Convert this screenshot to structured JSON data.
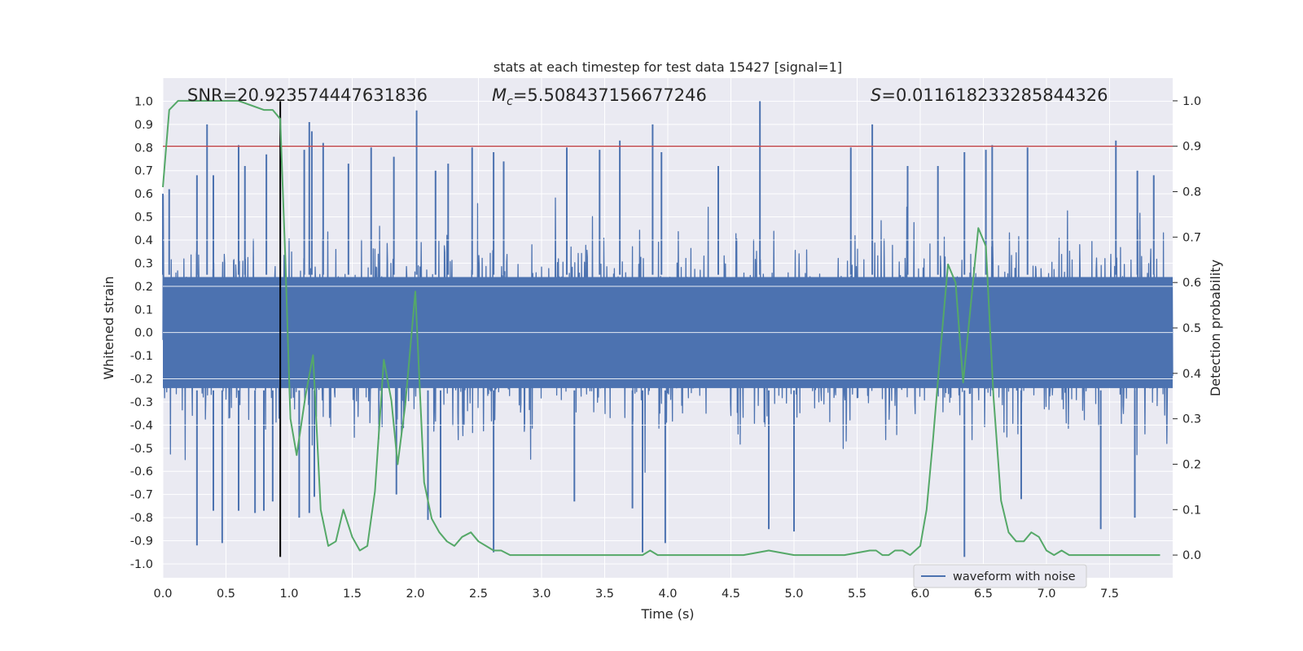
{
  "chart_data": {
    "type": "line",
    "title": "stats at each timestep for test data 15427 [signal=1]",
    "xlabel": "Time (s)",
    "ylabel_left": "Whitened strain",
    "ylabel_right": "Detection probability",
    "xlim": [
      0,
      8
    ],
    "ylim_left": [
      -1.06,
      1.1
    ],
    "ylim_right": [
      -0.05,
      1.05
    ],
    "x_ticks": [
      "0.0",
      "0.5",
      "1.0",
      "1.5",
      "2.0",
      "2.5",
      "3.0",
      "3.5",
      "4.0",
      "4.5",
      "5.0",
      "5.5",
      "6.0",
      "6.5",
      "7.0",
      "7.5"
    ],
    "y_ticks_left": [
      "1.0",
      "0.9",
      "0.8",
      "0.7",
      "0.6",
      "0.5",
      "0.4",
      "0.3",
      "0.2",
      "0.1",
      "0.0",
      "-0.1",
      "-0.2",
      "-0.3",
      "-0.4",
      "-0.5",
      "-0.6",
      "-0.7",
      "-0.8",
      "-0.9",
      "-1.0"
    ],
    "y_ticks_right": [
      "1.0",
      "0.9",
      "0.8",
      "0.7",
      "0.6",
      "0.5",
      "0.4",
      "0.3",
      "0.2",
      "0.1",
      "0.0"
    ],
    "grid": true,
    "annotations": {
      "snr": "SNR=20.923574447631836",
      "mc_symbol": "M",
      "mc_sub": "c",
      "mc_value": "=5.508437156677246",
      "s_symbol": "S",
      "s_value": "=0.011618233285844326"
    },
    "threshold": {
      "value_right_axis": 0.9,
      "color": "#c44e52"
    },
    "vertical_marker": {
      "x": 0.93,
      "y_range": [
        -0.97,
        1.0
      ],
      "color": "#000000"
    },
    "legend": {
      "label": "waveform with noise",
      "position": "lower-right"
    },
    "series": [
      {
        "name": "waveform with noise",
        "axis": "left",
        "color": "#4c72b0",
        "description": "noise-dominated whitened strain, roughly 2048 samples per second",
        "spikes_high": [
          [
            0.0,
            0.6
          ],
          [
            0.05,
            0.62
          ],
          [
            0.27,
            0.68
          ],
          [
            0.35,
            0.9
          ],
          [
            0.4,
            0.68
          ],
          [
            0.6,
            0.81
          ],
          [
            0.65,
            0.72
          ],
          [
            0.82,
            0.77
          ],
          [
            1.12,
            0.79
          ],
          [
            1.16,
            0.91
          ],
          [
            1.18,
            0.87
          ],
          [
            1.27,
            0.82
          ],
          [
            1.47,
            0.73
          ],
          [
            1.65,
            0.8
          ],
          [
            1.83,
            0.76
          ],
          [
            2.01,
            0.96
          ],
          [
            2.16,
            0.7
          ],
          [
            2.26,
            0.73
          ],
          [
            2.45,
            0.8
          ],
          [
            2.62,
            0.78
          ],
          [
            2.7,
            0.74
          ],
          [
            3.2,
            0.8
          ],
          [
            3.46,
            0.79
          ],
          [
            3.62,
            0.83
          ],
          [
            3.88,
            0.9
          ],
          [
            3.95,
            0.78
          ],
          [
            4.4,
            0.72
          ],
          [
            4.73,
            1.0
          ],
          [
            5.45,
            0.8
          ],
          [
            5.62,
            0.9
          ],
          [
            5.9,
            0.72
          ],
          [
            6.14,
            0.72
          ],
          [
            6.35,
            0.78
          ],
          [
            6.52,
            0.79
          ],
          [
            6.57,
            0.81
          ],
          [
            6.85,
            0.8
          ],
          [
            7.55,
            0.83
          ],
          [
            7.72,
            0.7
          ],
          [
            7.85,
            0.68
          ]
        ],
        "spikes_low": [
          [
            0.27,
            -0.92
          ],
          [
            0.4,
            -0.77
          ],
          [
            0.47,
            -0.91
          ],
          [
            0.6,
            -0.77
          ],
          [
            0.73,
            -0.78
          ],
          [
            0.8,
            -0.77
          ],
          [
            0.87,
            -0.73
          ],
          [
            1.08,
            -0.8
          ],
          [
            1.16,
            -0.78
          ],
          [
            1.2,
            -0.71
          ],
          [
            1.85,
            -0.7
          ],
          [
            2.1,
            -0.81
          ],
          [
            2.2,
            -0.8
          ],
          [
            2.62,
            -0.95
          ],
          [
            3.26,
            -0.73
          ],
          [
            3.72,
            -0.76
          ],
          [
            3.8,
            -0.95
          ],
          [
            3.98,
            -0.91
          ],
          [
            4.8,
            -0.85
          ],
          [
            5.0,
            -0.86
          ],
          [
            6.35,
            -0.97
          ],
          [
            6.8,
            -0.72
          ],
          [
            7.43,
            -0.85
          ],
          [
            7.7,
            -0.8
          ]
        ]
      },
      {
        "name": "detection probability",
        "axis": "right",
        "color": "#55a868",
        "x": [
          0.0,
          0.05,
          0.12,
          0.2,
          0.3,
          0.4,
          0.5,
          0.6,
          0.7,
          0.8,
          0.87,
          0.93,
          0.97,
          1.01,
          1.06,
          1.13,
          1.19,
          1.25,
          1.31,
          1.37,
          1.43,
          1.5,
          1.56,
          1.62,
          1.68,
          1.75,
          1.81,
          1.86,
          1.92,
          2.0,
          2.07,
          2.13,
          2.19,
          2.25,
          2.31,
          2.37,
          2.44,
          2.5,
          2.56,
          2.62,
          2.68,
          2.75,
          2.81,
          2.87,
          2.94,
          3.0,
          3.2,
          3.4,
          3.6,
          3.8,
          3.86,
          3.92,
          4.0,
          4.2,
          4.4,
          4.6,
          4.8,
          5.0,
          5.2,
          5.4,
          5.6,
          5.65,
          5.7,
          5.75,
          5.8,
          5.86,
          5.92,
          6.0,
          6.05,
          6.1,
          6.16,
          6.22,
          6.28,
          6.34,
          6.4,
          6.46,
          6.52,
          6.58,
          6.64,
          6.7,
          6.76,
          6.82,
          6.88,
          6.94,
          7.0,
          7.06,
          7.12,
          7.18,
          7.24,
          7.3,
          7.5,
          7.7,
          7.9
        ],
        "y": [
          0.81,
          0.98,
          1.0,
          1.0,
          1.0,
          1.0,
          1.0,
          1.0,
          0.99,
          0.98,
          0.98,
          0.96,
          0.65,
          0.3,
          0.22,
          0.35,
          0.44,
          0.1,
          0.02,
          0.03,
          0.1,
          0.04,
          0.01,
          0.02,
          0.14,
          0.43,
          0.34,
          0.2,
          0.33,
          0.58,
          0.16,
          0.08,
          0.05,
          0.03,
          0.02,
          0.04,
          0.05,
          0.03,
          0.02,
          0.01,
          0.01,
          0.0,
          0.0,
          0.0,
          0.0,
          0.0,
          0.0,
          0.0,
          0.0,
          0.0,
          0.01,
          0.0,
          0.0,
          0.0,
          0.0,
          0.0,
          0.01,
          0.0,
          0.0,
          0.0,
          0.01,
          0.01,
          0.0,
          0.0,
          0.01,
          0.01,
          0.0,
          0.02,
          0.1,
          0.25,
          0.45,
          0.64,
          0.6,
          0.38,
          0.55,
          0.72,
          0.68,
          0.35,
          0.12,
          0.05,
          0.03,
          0.03,
          0.05,
          0.04,
          0.01,
          0.0,
          0.01,
          0.0,
          0.0,
          0.0,
          0.0,
          0.0,
          0.0
        ]
      }
    ]
  }
}
